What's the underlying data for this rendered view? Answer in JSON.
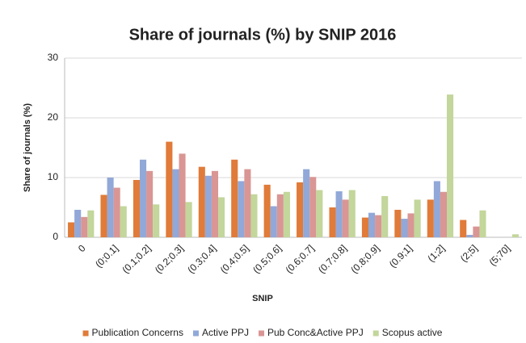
{
  "chart_data": {
    "type": "bar",
    "title": "Share of journals (%) by SNIP 2016",
    "x_label": "SNIP",
    "y_label": "Share of journals (%)",
    "categories": [
      "0",
      "(0;0.1]",
      "(0.1;0.2]",
      "(0.2;0.3]",
      "(0.3;0.4]",
      "(0.4;0.5]",
      "(0.5;0.6]",
      "(0.6;0.7]",
      "(0.7;0.8]",
      "(0.8;0.9]",
      "(0.9;1]",
      "(1;2]",
      "(2;5]",
      "(5;70]"
    ],
    "series": [
      {
        "name": "Publication Concerns",
        "color": "#e07b39",
        "values": [
          2.5,
          7.1,
          9.6,
          16,
          11.8,
          13,
          8.8,
          9.2,
          5,
          3.3,
          4.6,
          6.3,
          2.9,
          0
        ]
      },
      {
        "name": "Active PPJ",
        "color": "#91a8d8",
        "values": [
          4.6,
          10,
          13,
          11.4,
          10.3,
          9.4,
          5.2,
          11.4,
          7.7,
          4.1,
          3.1,
          9.4,
          0.4,
          0
        ]
      },
      {
        "name": "Pub Conc&Active PPJ",
        "color": "#d99694",
        "values": [
          3.4,
          8.3,
          11.1,
          14,
          11.1,
          11.4,
          7.2,
          10.1,
          6.3,
          3.7,
          4,
          7.6,
          1.8,
          0
        ]
      },
      {
        "name": "Scopus active",
        "color": "#c3d69b",
        "values": [
          4.5,
          5.2,
          5.5,
          5.9,
          6.7,
          7.2,
          7.6,
          7.9,
          7.9,
          6.9,
          6.3,
          23.9,
          4.5,
          0.5
        ]
      }
    ],
    "ylim": [
      0,
      30
    ],
    "yticks": [
      0,
      10,
      20,
      30
    ],
    "grid": true,
    "legend": "bottom"
  }
}
